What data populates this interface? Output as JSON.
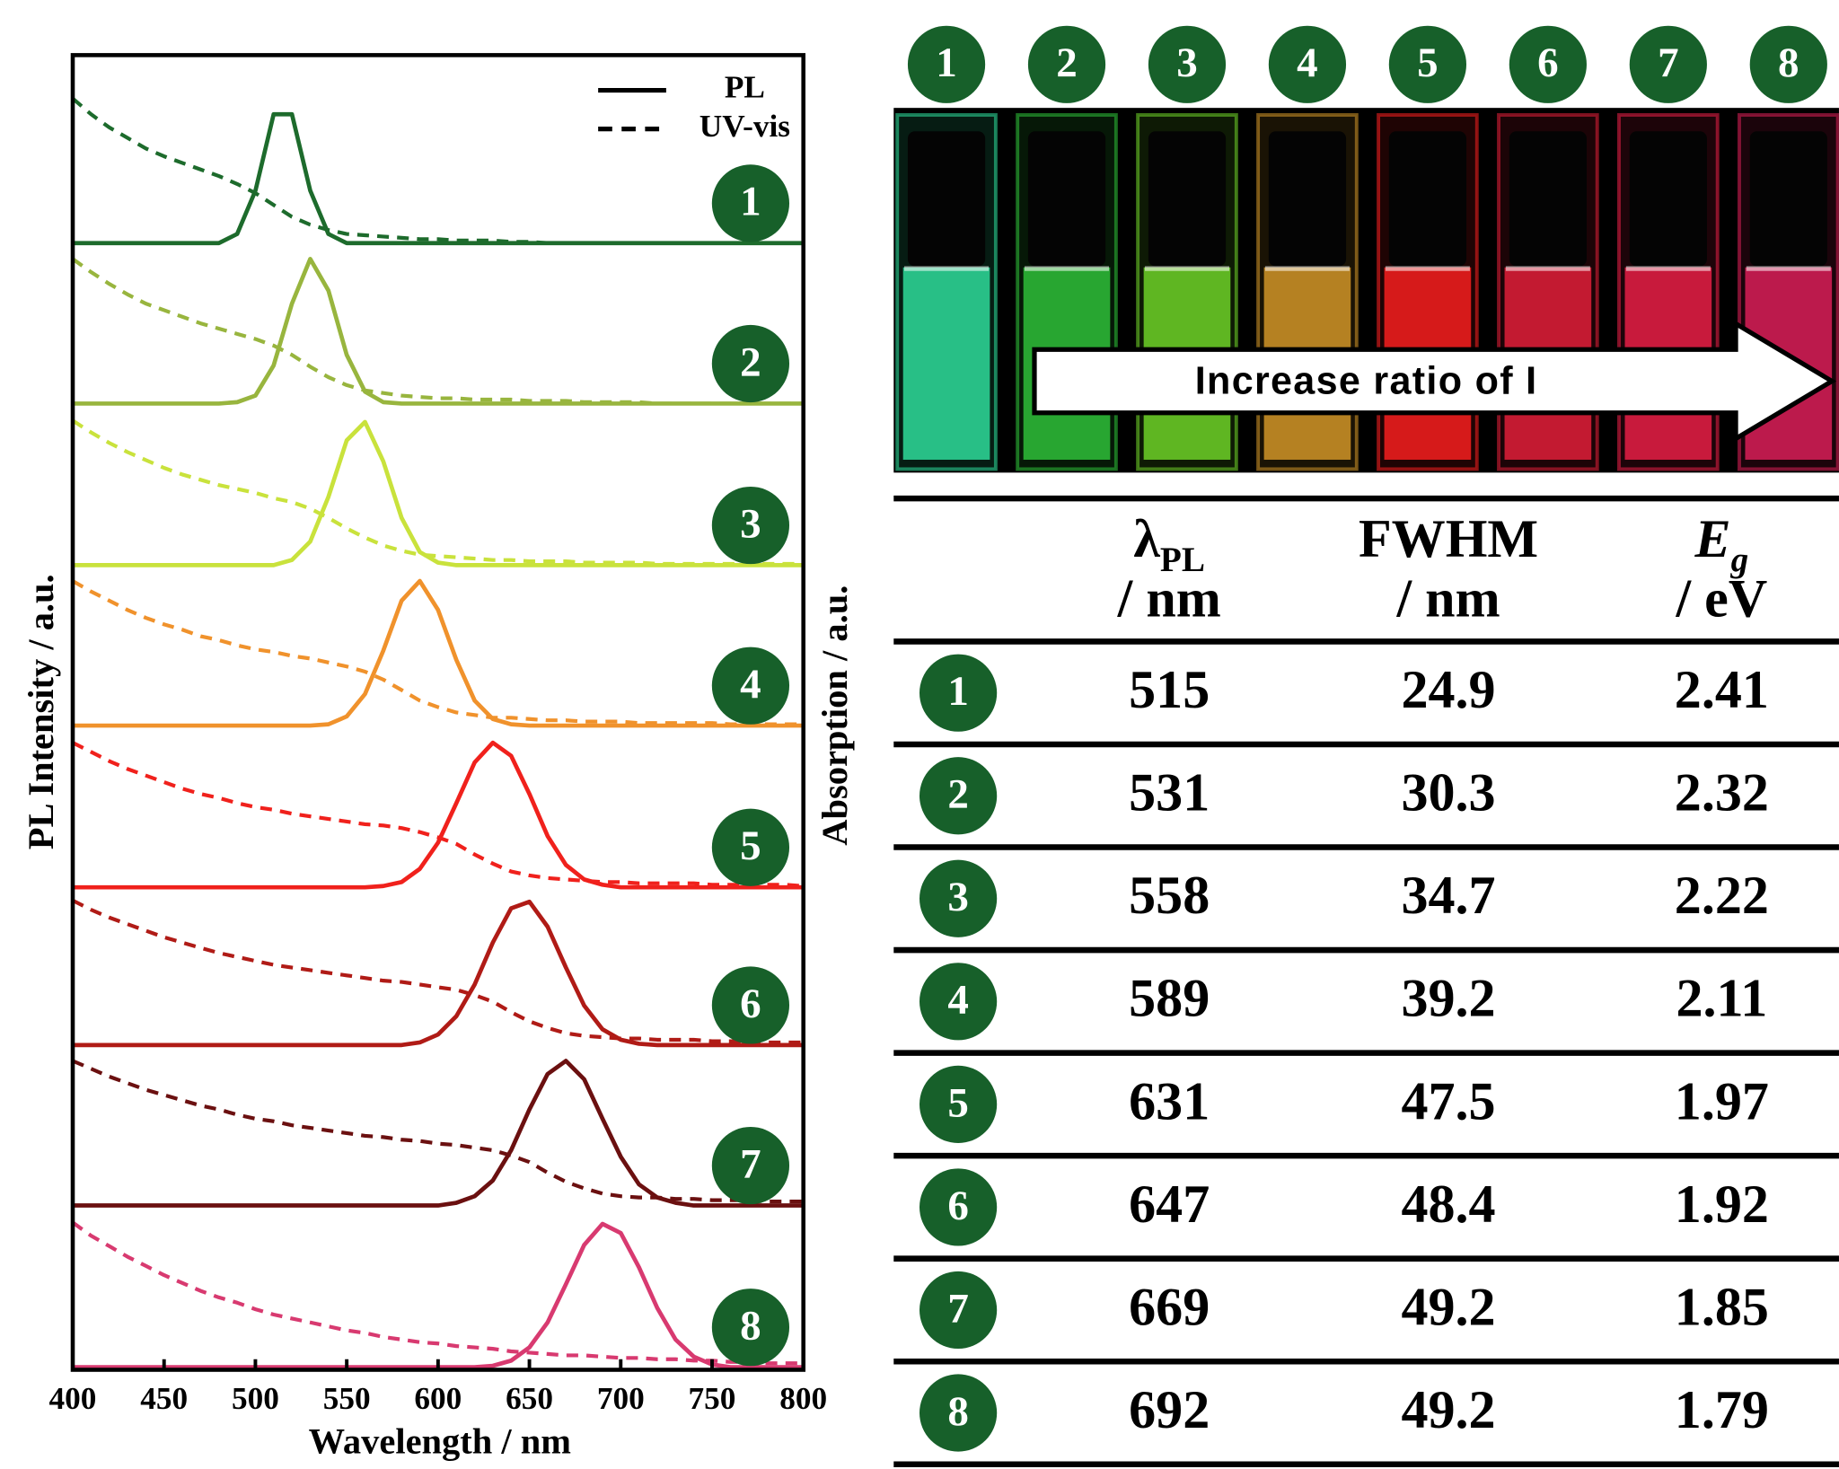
{
  "chart_data": {
    "type": "line",
    "xlabel": "Wavelength / nm",
    "ylabel": "PL Intensity / a.u.",
    "y2label": "Absorption / a.u.",
    "xlim": [
      400,
      800
    ],
    "xticks": [
      400,
      450,
      500,
      550,
      600,
      650,
      700,
      750,
      800
    ],
    "ylim": [
      0,
      100
    ],
    "grid": false,
    "legend": {
      "position": "upper right",
      "entries": [
        {
          "label": "PL",
          "dash": "solid"
        },
        {
          "label": "UV-vis",
          "dash": "dashed"
        }
      ]
    },
    "x": [
      400,
      410,
      420,
      430,
      440,
      450,
      460,
      470,
      480,
      490,
      500,
      510,
      520,
      530,
      540,
      550,
      560,
      570,
      580,
      590,
      600,
      610,
      620,
      630,
      640,
      650,
      660,
      670,
      680,
      690,
      700,
      710,
      720,
      730,
      740,
      750,
      760,
      770,
      780,
      790,
      800
    ],
    "series": [
      {
        "name": "1",
        "color": "#1d6b2c",
        "pl_values": [
          85.7,
          85.7,
          85.7,
          85.7,
          85.7,
          85.7,
          85.7,
          85.7,
          85.7,
          86.4,
          89.7,
          95.5,
          95.5,
          89.7,
          86.4,
          85.7,
          85.7,
          85.7,
          85.7,
          85.7,
          85.7,
          85.7,
          85.7,
          85.7,
          85.7,
          85.7,
          85.7,
          85.7,
          85.7,
          85.7,
          85.7,
          85.7,
          85.7,
          85.7,
          85.7,
          85.7,
          85.7,
          85.7,
          85.7,
          85.7,
          85.7
        ],
        "uv_values": [
          96.7,
          95.5,
          94.5,
          93.7,
          92.9,
          92.3,
          91.8,
          91.3,
          90.8,
          90.2,
          89.5,
          88.6,
          87.7,
          87.1,
          86.7,
          86.4,
          86.3,
          86.2,
          86.1,
          86.0,
          86.0,
          85.9,
          85.9,
          85.9,
          85.8,
          85.8,
          85.7,
          85.7,
          85.7,
          85.7,
          85.7,
          85.7,
          85.7,
          85.7,
          85.7,
          85.7,
          85.7,
          85.7,
          85.7,
          85.7,
          85.7
        ]
      },
      {
        "name": "2",
        "color": "#98b53e",
        "pl_values": [
          73.5,
          73.5,
          73.5,
          73.5,
          73.5,
          73.5,
          73.5,
          73.5,
          73.5,
          73.6,
          74.1,
          76.4,
          81.1,
          84.5,
          82.1,
          77.2,
          74.4,
          73.6,
          73.5,
          73.5,
          73.5,
          73.5,
          73.5,
          73.5,
          73.5,
          73.5,
          73.5,
          73.5,
          73.5,
          73.5,
          73.5,
          73.5,
          73.5,
          73.5,
          73.5,
          73.5,
          73.5,
          73.5,
          73.5,
          73.5,
          73.5
        ],
        "uv_values": [
          84.5,
          83.5,
          82.6,
          81.8,
          81.1,
          80.6,
          80.1,
          79.6,
          79.2,
          78.8,
          78.4,
          77.9,
          77.2,
          76.3,
          75.5,
          74.9,
          74.5,
          74.3,
          74.1,
          74.0,
          73.9,
          73.9,
          73.8,
          73.8,
          73.8,
          73.7,
          73.7,
          73.7,
          73.6,
          73.6,
          73.6,
          73.6,
          73.5,
          73.5,
          73.5,
          73.5,
          73.5,
          73.5,
          73.5,
          73.5,
          73.5
        ]
      },
      {
        "name": "3",
        "color": "#c9e23c",
        "pl_values": [
          61.2,
          61.2,
          61.2,
          61.2,
          61.2,
          61.2,
          61.2,
          61.2,
          61.2,
          61.2,
          61.2,
          61.2,
          61.6,
          63.0,
          66.4,
          70.7,
          72.1,
          69.1,
          64.8,
          62.2,
          61.4,
          61.2,
          61.2,
          61.2,
          61.2,
          61.2,
          61.2,
          61.2,
          61.2,
          61.2,
          61.2,
          61.2,
          61.2,
          61.2,
          61.2,
          61.2,
          61.2,
          61.2,
          61.2,
          61.2,
          61.2
        ],
        "uv_values": [
          72.2,
          71.3,
          70.5,
          69.8,
          69.2,
          68.6,
          68.1,
          67.7,
          67.3,
          67.0,
          66.7,
          66.3,
          66.0,
          65.5,
          64.8,
          64.0,
          63.3,
          62.7,
          62.3,
          62.0,
          61.9,
          61.8,
          61.7,
          61.6,
          61.6,
          61.5,
          61.5,
          61.5,
          61.4,
          61.4,
          61.4,
          61.4,
          61.3,
          61.3,
          61.3,
          61.3,
          61.3,
          61.3,
          61.3,
          61.3,
          61.3
        ]
      },
      {
        "name": "4",
        "color": "#f0922c",
        "pl_values": [
          49.0,
          49.0,
          49.0,
          49.0,
          49.0,
          49.0,
          49.0,
          49.0,
          49.0,
          49.0,
          49.0,
          49.0,
          49.0,
          49.0,
          49.1,
          49.7,
          51.4,
          54.7,
          58.5,
          60.0,
          57.8,
          54.0,
          50.9,
          49.5,
          49.1,
          49.0,
          49.0,
          49.0,
          49.0,
          49.0,
          49.0,
          49.0,
          49.0,
          49.0,
          49.0,
          49.0,
          49.0,
          49.0,
          49.0,
          49.0,
          49.0
        ],
        "uv_values": [
          60.0,
          59.2,
          58.5,
          57.8,
          57.2,
          56.7,
          56.3,
          55.8,
          55.5,
          55.1,
          54.8,
          54.6,
          54.3,
          54.1,
          53.8,
          53.5,
          53.1,
          52.5,
          51.7,
          50.9,
          50.4,
          50.0,
          49.8,
          49.6,
          49.6,
          49.5,
          49.4,
          49.4,
          49.3,
          49.3,
          49.3,
          49.2,
          49.2,
          49.2,
          49.2,
          49.2,
          49.1,
          49.1,
          49.1,
          49.1,
          49.1
        ]
      },
      {
        "name": "5",
        "color": "#f0211c",
        "pl_values": [
          36.7,
          36.7,
          36.7,
          36.7,
          36.7,
          36.7,
          36.7,
          36.7,
          36.7,
          36.7,
          36.7,
          36.7,
          36.7,
          36.7,
          36.7,
          36.7,
          36.7,
          36.8,
          37.1,
          38.1,
          40.1,
          43.1,
          46.2,
          47.7,
          46.7,
          43.8,
          40.6,
          38.4,
          37.3,
          36.9,
          36.7,
          36.7,
          36.7,
          36.7,
          36.7,
          36.7,
          36.7,
          36.7,
          36.7,
          36.7,
          36.7
        ],
        "uv_values": [
          47.7,
          47.0,
          46.3,
          45.7,
          45.2,
          44.7,
          44.2,
          43.8,
          43.5,
          43.1,
          42.8,
          42.6,
          42.3,
          42.1,
          41.9,
          41.7,
          41.5,
          41.4,
          41.2,
          40.9,
          40.5,
          40.0,
          39.2,
          38.5,
          37.9,
          37.6,
          37.4,
          37.3,
          37.2,
          37.1,
          37.1,
          37.0,
          37.0,
          37.0,
          37.0,
          36.9,
          36.9,
          36.9,
          36.9,
          36.9,
          36.8
        ]
      },
      {
        "name": "6",
        "color": "#b01b16",
        "pl_values": [
          24.7,
          24.7,
          24.7,
          24.7,
          24.7,
          24.7,
          24.7,
          24.7,
          24.7,
          24.7,
          24.7,
          24.7,
          24.7,
          24.7,
          24.7,
          24.7,
          24.7,
          24.7,
          24.7,
          24.9,
          25.5,
          26.9,
          29.3,
          32.5,
          35.1,
          35.6,
          33.7,
          30.6,
          27.7,
          25.9,
          25.1,
          24.8,
          24.7,
          24.7,
          24.7,
          24.7,
          24.7,
          24.7,
          24.7,
          24.7,
          24.7
        ],
        "uv_values": [
          35.7,
          35.0,
          34.4,
          33.9,
          33.4,
          32.9,
          32.5,
          32.1,
          31.7,
          31.4,
          31.1,
          30.8,
          30.6,
          30.4,
          30.2,
          30.0,
          29.8,
          29.6,
          29.5,
          29.3,
          29.1,
          28.9,
          28.5,
          28.0,
          27.2,
          26.5,
          26.0,
          25.6,
          25.4,
          25.3,
          25.2,
          25.2,
          25.1,
          25.1,
          25.1,
          25.0,
          25.0,
          25.0,
          24.9,
          24.9,
          24.9
        ]
      },
      {
        "name": "7",
        "color": "#6b1010",
        "pl_values": [
          12.5,
          12.5,
          12.5,
          12.5,
          12.5,
          12.5,
          12.5,
          12.5,
          12.5,
          12.5,
          12.5,
          12.5,
          12.5,
          12.5,
          12.5,
          12.5,
          12.5,
          12.5,
          12.5,
          12.5,
          12.5,
          12.7,
          13.2,
          14.4,
          16.7,
          19.8,
          22.5,
          23.5,
          22.1,
          19.1,
          16.2,
          14.1,
          13.1,
          12.7,
          12.5,
          12.5,
          12.5,
          12.5,
          12.5,
          12.5,
          12.5
        ],
        "uv_values": [
          23.5,
          22.9,
          22.3,
          21.8,
          21.3,
          20.9,
          20.5,
          20.1,
          19.8,
          19.4,
          19.1,
          18.9,
          18.6,
          18.4,
          18.2,
          18.0,
          17.8,
          17.7,
          17.5,
          17.4,
          17.2,
          17.1,
          16.9,
          16.7,
          16.3,
          15.8,
          15.0,
          14.3,
          13.8,
          13.4,
          13.2,
          13.1,
          13.1,
          13.0,
          13.0,
          12.9,
          12.9,
          12.9,
          12.8,
          12.8,
          12.8
        ]
      },
      {
        "name": "8",
        "color": "#d83a70",
        "pl_values": [
          0.2,
          0.2,
          0.2,
          0.2,
          0.2,
          0.2,
          0.2,
          0.2,
          0.2,
          0.2,
          0.2,
          0.2,
          0.2,
          0.2,
          0.2,
          0.2,
          0.2,
          0.2,
          0.2,
          0.2,
          0.2,
          0.2,
          0.2,
          0.3,
          0.7,
          1.7,
          3.6,
          6.5,
          9.5,
          11.1,
          10.4,
          7.8,
          4.7,
          2.3,
          1.0,
          0.4,
          0.2,
          0.2,
          0.2,
          0.2,
          0.2
        ],
        "uv_values": [
          11.2,
          10.2,
          9.4,
          8.6,
          7.9,
          7.2,
          6.6,
          6.0,
          5.5,
          5.1,
          4.6,
          4.2,
          3.9,
          3.6,
          3.3,
          3.0,
          2.8,
          2.5,
          2.3,
          2.1,
          2.0,
          1.8,
          1.7,
          1.6,
          1.4,
          1.3,
          1.2,
          1.1,
          1.1,
          1.0,
          0.9,
          0.9,
          0.8,
          0.8,
          0.7,
          0.7,
          0.6,
          0.6,
          0.5,
          0.5,
          0.5
        ]
      }
    ]
  },
  "photo": {
    "labels": [
      "1",
      "2",
      "3",
      "4",
      "5",
      "6",
      "7",
      "8"
    ],
    "cuvette_colors": [
      "#2fe3a0",
      "#2fc63a",
      "#72d92a",
      "#d89a2a",
      "#ff2020",
      "#e8203a",
      "#ee2048",
      "#e0205a"
    ],
    "arrow_text": "Increase ratio of I"
  },
  "table": {
    "columns": [
      {
        "symbol": "λ",
        "sub": "PL",
        "unit": "/ nm"
      },
      {
        "symbol": "FWHM",
        "unit": "/ nm"
      },
      {
        "symbol": "E",
        "sub": "g",
        "unit": "/ eV"
      }
    ],
    "rows": [
      [
        "1",
        515,
        24.9,
        2.41
      ],
      [
        "2",
        531,
        30.3,
        2.32
      ],
      [
        "3",
        558,
        34.7,
        2.22
      ],
      [
        "4",
        589,
        39.2,
        2.11
      ],
      [
        "5",
        631,
        47.5,
        1.97
      ],
      [
        "6",
        647,
        48.4,
        1.92
      ],
      [
        "7",
        669,
        49.2,
        1.85
      ],
      [
        "8",
        692,
        49.2,
        1.79
      ]
    ]
  }
}
